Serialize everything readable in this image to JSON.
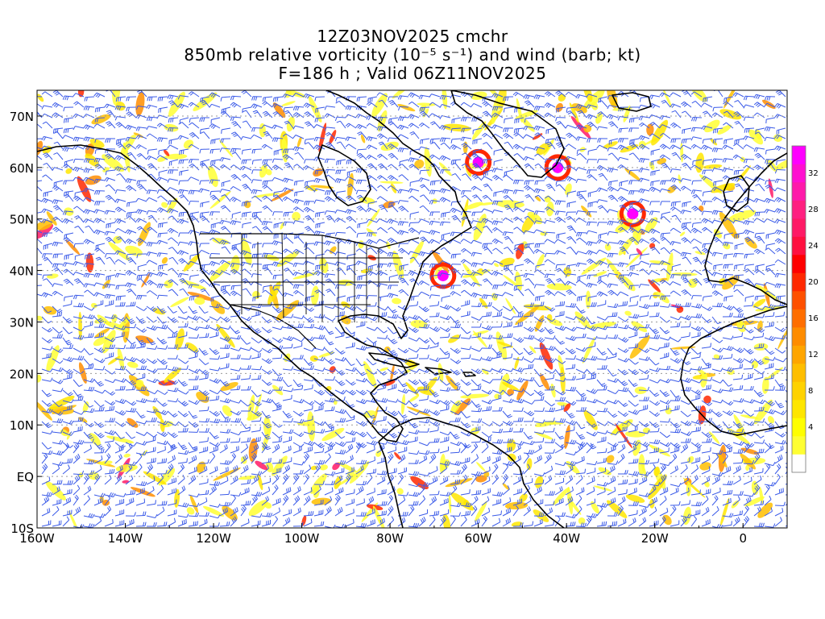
{
  "title": {
    "line1": "12Z03NOV2025 cmchr",
    "line2": "850mb relative vorticity (10⁻⁵ s⁻¹) and wind (barb; kt)",
    "line3": "F=186 h ; Valid 06Z11NOV2025"
  },
  "map": {
    "lon_range": [
      -160,
      10
    ],
    "lat_range": [
      -10,
      75
    ],
    "lon_ticks": [
      {
        "lon": -160,
        "label": "160W"
      },
      {
        "lon": -140,
        "label": "140W"
      },
      {
        "lon": -120,
        "label": "120W"
      },
      {
        "lon": -100,
        "label": "100W"
      },
      {
        "lon": -80,
        "label": "80W"
      },
      {
        "lon": -60,
        "label": "60W"
      },
      {
        "lon": -40,
        "label": "40W"
      },
      {
        "lon": -20,
        "label": "20W"
      },
      {
        "lon": 0,
        "label": "0"
      }
    ],
    "lat_ticks": [
      {
        "lat": -10,
        "label": "10S"
      },
      {
        "lat": 0,
        "label": "EQ"
      },
      {
        "lat": 10,
        "label": "10N"
      },
      {
        "lat": 20,
        "label": "20N"
      },
      {
        "lat": 30,
        "label": "30N"
      },
      {
        "lat": 40,
        "label": "40N"
      },
      {
        "lat": 50,
        "label": "50N"
      },
      {
        "lat": 60,
        "label": "60N"
      },
      {
        "lat": 70,
        "label": "70N"
      }
    ],
    "barb_color": "#3a5ae8",
    "coast_color": "#000000",
    "grid_style": "dotted gray"
  },
  "colorbar": {
    "levels": [
      {
        "value": 0,
        "label": "",
        "color": "#ffffff"
      },
      {
        "value": 2,
        "label": "",
        "color": "#ffff33"
      },
      {
        "value": 4,
        "label": "4",
        "color": "#ffff00"
      },
      {
        "value": 6,
        "label": "",
        "color": "#ffe600"
      },
      {
        "value": 8,
        "label": "8",
        "color": "#ffd200"
      },
      {
        "value": 10,
        "label": "",
        "color": "#ffbe00"
      },
      {
        "value": 12,
        "label": "12",
        "color": "#ffa500"
      },
      {
        "value": 14,
        "label": "",
        "color": "#ff8c00"
      },
      {
        "value": 16,
        "label": "16",
        "color": "#ff6e00"
      },
      {
        "value": 18,
        "label": "",
        "color": "#ff5000"
      },
      {
        "value": 20,
        "label": "20",
        "color": "#ff2800"
      },
      {
        "value": 22,
        "label": "",
        "color": "#ff0000"
      },
      {
        "value": 24,
        "label": "24",
        "color": "#ff1040"
      },
      {
        "value": 26,
        "label": "",
        "color": "#ff1a66"
      },
      {
        "value": 28,
        "label": "28",
        "color": "#ff2080"
      },
      {
        "value": 30,
        "label": "",
        "color": "#ff1aaa"
      },
      {
        "value": 32,
        "label": "32",
        "color": "#ff10d0"
      },
      {
        "value": 34,
        "label": "",
        "color": "#ff00ff"
      }
    ]
  }
}
